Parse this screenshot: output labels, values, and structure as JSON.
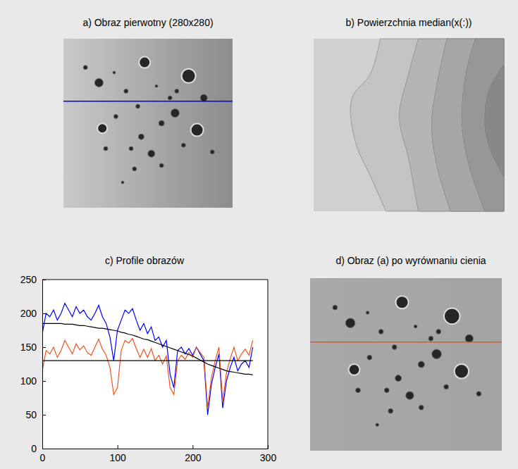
{
  "chart_data": [
    {
      "type": "image",
      "title": "a) Obraz pierwotny (280x280)",
      "tick_labels": false,
      "color": "#0000ff"
    },
    {
      "type": "contour",
      "title": "b) Powierzchnia median(x(:))",
      "tick_labels": false
    },
    {
      "type": "line",
      "title": "c) Profile obrazów",
      "x": [
        0,
        5,
        10,
        15,
        20,
        25,
        30,
        35,
        40,
        45,
        50,
        55,
        60,
        65,
        70,
        75,
        80,
        85,
        90,
        95,
        100,
        105,
        110,
        115,
        120,
        125,
        130,
        135,
        140,
        145,
        150,
        155,
        160,
        165,
        170,
        175,
        180,
        185,
        190,
        195,
        200,
        205,
        210,
        215,
        220,
        225,
        230,
        235,
        240,
        245,
        250,
        255,
        260,
        265,
        270,
        275,
        280
      ],
      "xlim": [
        0,
        300
      ],
      "xticks": [
        0,
        100,
        200,
        300
      ],
      "ylim": [
        0,
        250
      ],
      "yticks": [
        0,
        50,
        100,
        150,
        200,
        250
      ],
      "series": [
        {
          "color": "#0000ff",
          "values": [
            170,
            200,
            195,
            205,
            190,
            200,
            215,
            205,
            195,
            210,
            200,
            205,
            195,
            190,
            200,
            212,
            195,
            185,
            165,
            130,
            175,
            190,
            205,
            200,
            207,
            190,
            175,
            185,
            170,
            180,
            160,
            165,
            150,
            160,
            110,
            90,
            145,
            150,
            140,
            148,
            138,
            150,
            140,
            130,
            50,
            95,
            120,
            140,
            60,
            100,
            120,
            135,
            115,
            125,
            130,
            120,
            150
          ]
        },
        {
          "color": "#f0541e",
          "values": [
            115,
            145,
            140,
            150,
            135,
            145,
            160,
            150,
            140,
            155,
            146,
            152,
            142,
            138,
            150,
            162,
            147,
            138,
            120,
            80,
            90,
            145,
            160,
            156,
            163,
            148,
            135,
            147,
            135,
            148,
            130,
            138,
            125,
            137,
            90,
            80,
            130,
            138,
            132,
            142,
            135,
            150,
            142,
            135,
            60,
            105,
            130,
            150,
            70,
            112,
            133,
            150,
            130,
            140,
            147,
            138,
            160
          ]
        },
        {
          "color": "#000000",
          "values": [
            185,
            185,
            185,
            185,
            185,
            185,
            184,
            184,
            184,
            183,
            182,
            182,
            181,
            180,
            179,
            178,
            178,
            177,
            176,
            175,
            174,
            172,
            171,
            169,
            168,
            166,
            164,
            162,
            161,
            159,
            157,
            155,
            153,
            151,
            149,
            147,
            145,
            143,
            141,
            139,
            137,
            134,
            131,
            128,
            125,
            123,
            121,
            119,
            117,
            115,
            114,
            113,
            112,
            111,
            110,
            110,
            109
          ]
        },
        {
          "color": "#000000",
          "values": [
            130,
            130,
            130,
            130,
            130,
            130,
            130,
            130,
            130,
            130,
            130,
            130,
            130,
            130,
            130,
            130,
            130,
            130,
            130,
            130,
            130,
            130,
            130,
            130,
            130,
            130,
            130,
            130,
            130,
            130,
            130,
            130,
            130,
            130,
            130,
            130,
            130,
            130,
            130,
            130,
            130,
            130,
            130,
            130,
            130,
            130,
            130,
            130,
            130,
            130,
            130,
            130,
            130,
            130,
            130,
            130,
            130
          ]
        }
      ]
    },
    {
      "type": "image",
      "title": "d) Obraz (a) po wyrównaniu cienia",
      "tick_labels": false,
      "color": "#f0541e"
    }
  ]
}
